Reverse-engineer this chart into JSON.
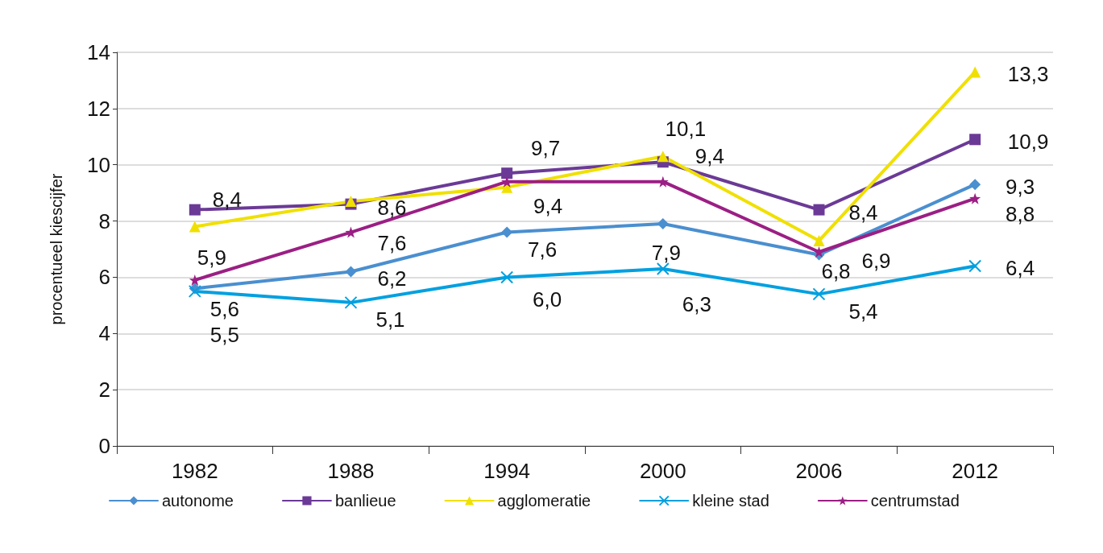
{
  "chart_data": {
    "type": "line",
    "ylabel": "procentueel kiescijfer",
    "categories": [
      "1982",
      "1988",
      "1994",
      "2000",
      "2006",
      "2012"
    ],
    "series": [
      {
        "name": "autonome",
        "color": "#4a8fd0",
        "marker": "diamond",
        "values": [
          5.6,
          6.2,
          7.6,
          7.9,
          6.8,
          9.3
        ],
        "value_labels": [
          "5,6",
          "6,2",
          "7,6",
          "7,9",
          "6,8",
          "9,3"
        ]
      },
      {
        "name": "banlieue",
        "color": "#6b3a96",
        "marker": "square",
        "values": [
          8.4,
          8.6,
          9.7,
          10.1,
          8.4,
          10.9
        ],
        "value_labels": [
          "8,4",
          "8,6",
          "9,7",
          "10,1",
          "8,4",
          "10,9"
        ]
      },
      {
        "name": "agglomeratie",
        "color": "#f0e000",
        "marker": "triangle",
        "values": [
          7.8,
          8.7,
          9.2,
          10.3,
          7.3,
          13.3
        ],
        "value_labels": [
          null,
          null,
          null,
          null,
          null,
          "13,3"
        ]
      },
      {
        "name": "kleine stad",
        "color": "#00a0e0",
        "marker": "cross",
        "values": [
          5.5,
          5.1,
          6.0,
          6.3,
          5.4,
          6.4
        ],
        "value_labels": [
          "5,5",
          "5,1",
          "6,0",
          "6,3",
          "5,4",
          "6,4"
        ]
      },
      {
        "name": "centrumstad",
        "color": "#9b1f84",
        "marker": "star",
        "values": [
          5.9,
          7.6,
          9.4,
          9.4,
          6.9,
          8.8
        ],
        "value_labels": [
          "5,9",
          "7,6",
          "9,4",
          "9,4",
          "6,9",
          "8,8"
        ]
      }
    ],
    "ylim": [
      0,
      14
    ],
    "yticks": [
      0,
      2,
      4,
      6,
      8,
      10,
      12,
      14
    ],
    "grid": "y",
    "legend": "bottom",
    "line_style": "solid"
  }
}
